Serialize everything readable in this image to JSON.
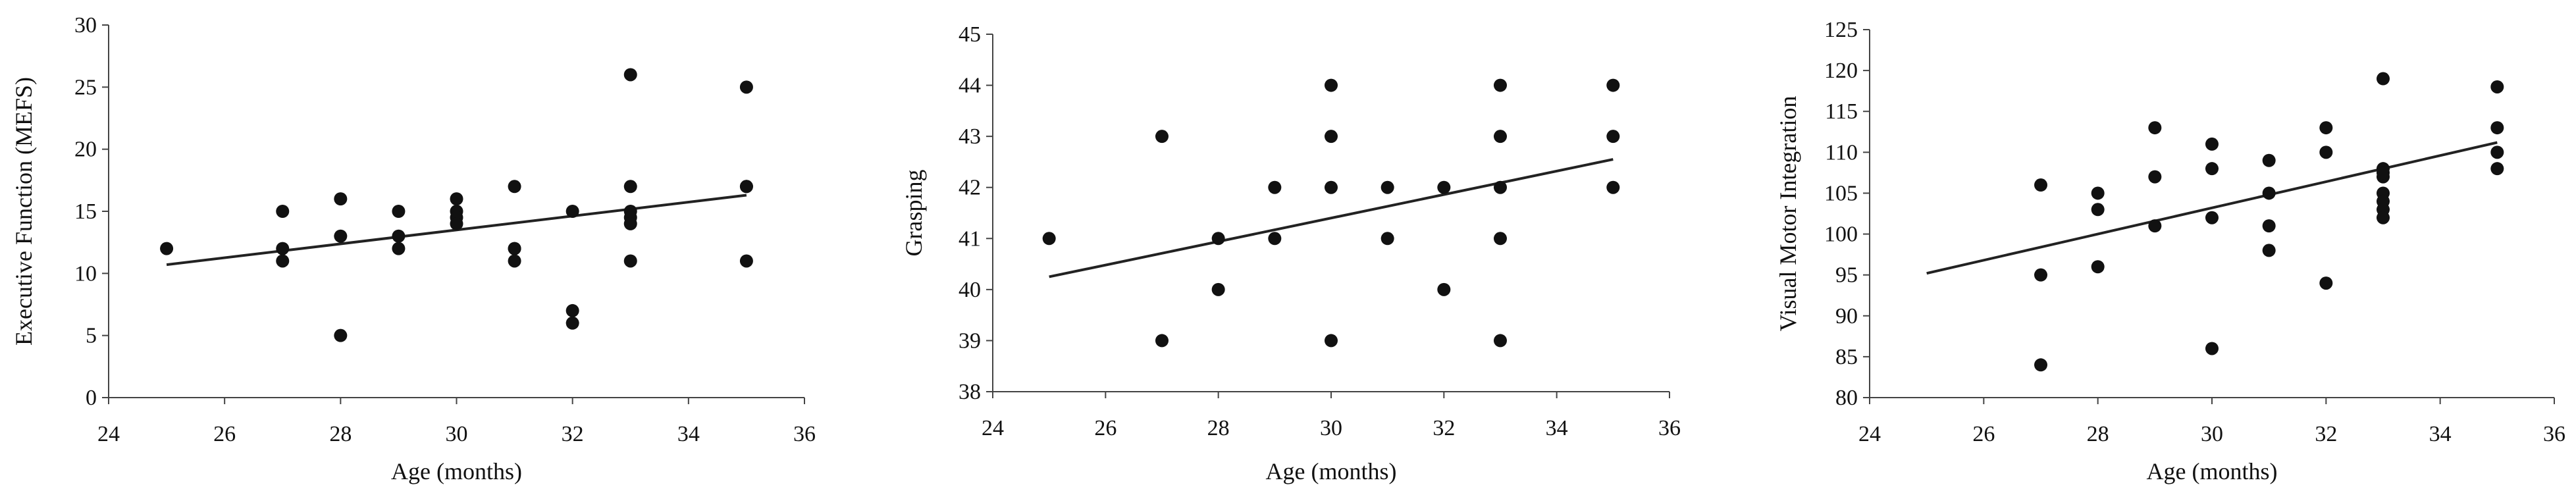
{
  "chart_data": [
    {
      "type": "scatter",
      "xlabel": "Age (months)",
      "ylabel": "Executive Function (MEFS)",
      "xlim": [
        24,
        36
      ],
      "ylim": [
        0,
        30
      ],
      "xticks": [
        24,
        26,
        28,
        30,
        32,
        34,
        36
      ],
      "yticks": [
        0,
        5,
        10,
        15,
        20,
        25,
        30
      ],
      "x": [
        25,
        27,
        27,
        27,
        28,
        28,
        28,
        29,
        29,
        29,
        30,
        30,
        30,
        30,
        31,
        31,
        31,
        31,
        32,
        32,
        32,
        33,
        33,
        33,
        33,
        33,
        33,
        35,
        35,
        35,
        35
      ],
      "y": [
        12,
        15,
        12,
        11,
        16,
        13,
        5,
        15,
        13,
        12,
        16,
        15,
        14.5,
        14,
        17,
        12,
        12,
        11,
        15,
        7,
        6,
        26,
        17,
        15,
        14.5,
        14,
        11,
        25,
        17,
        17,
        11
      ],
      "trendline": {
        "x": [
          25,
          35
        ],
        "y": [
          10.7,
          16.3
        ]
      },
      "grid": false
    },
    {
      "type": "scatter",
      "xlabel": "Age (months)",
      "ylabel": "Grasping",
      "xlim": [
        24,
        36
      ],
      "ylim": [
        38,
        45
      ],
      "xticks": [
        24,
        26,
        28,
        30,
        32,
        34,
        36
      ],
      "yticks": [
        38,
        39,
        40,
        41,
        42,
        43,
        44,
        45
      ],
      "x": [
        25,
        27,
        27,
        28,
        28,
        29,
        29,
        30,
        30,
        30,
        30,
        31,
        31,
        32,
        32,
        33,
        33,
        33,
        33,
        33,
        35,
        35,
        35
      ],
      "y": [
        41,
        43,
        39,
        41,
        40,
        42,
        41,
        44,
        43,
        42,
        39,
        42,
        41,
        42,
        40,
        44,
        43,
        42,
        41,
        39,
        44,
        43,
        42
      ],
      "trendline": {
        "x": [
          25,
          35
        ],
        "y": [
          40.25,
          42.55
        ]
      },
      "grid": false
    },
    {
      "type": "scatter",
      "xlabel": "Age (months)",
      "ylabel": "Visual Motor Integration",
      "xlim": [
        24,
        36
      ],
      "ylim": [
        80,
        125
      ],
      "xticks": [
        24,
        26,
        28,
        30,
        32,
        34,
        36
      ],
      "yticks": [
        80,
        85,
        90,
        95,
        100,
        105,
        110,
        115,
        120,
        125
      ],
      "x": [
        27,
        27,
        27,
        28,
        28,
        28,
        29,
        29,
        29,
        30,
        30,
        30,
        30,
        31,
        31,
        31,
        31,
        32,
        32,
        32,
        33,
        33,
        33,
        33,
        33,
        33,
        33,
        33,
        35,
        35,
        35,
        35
      ],
      "y": [
        106,
        95,
        84,
        105,
        103,
        96,
        113,
        107,
        101,
        111,
        108,
        102,
        86,
        109,
        105,
        101,
        98,
        113,
        110,
        94,
        119,
        108,
        107,
        105,
        104,
        103,
        102,
        107.5,
        118,
        113,
        110,
        108
      ],
      "trendline": {
        "x": [
          25,
          35
        ],
        "y": [
          95.2,
          111.2
        ]
      },
      "grid": false
    }
  ],
  "colors": {
    "marker": "#111111",
    "line": "#222222",
    "axis": "#444444"
  }
}
